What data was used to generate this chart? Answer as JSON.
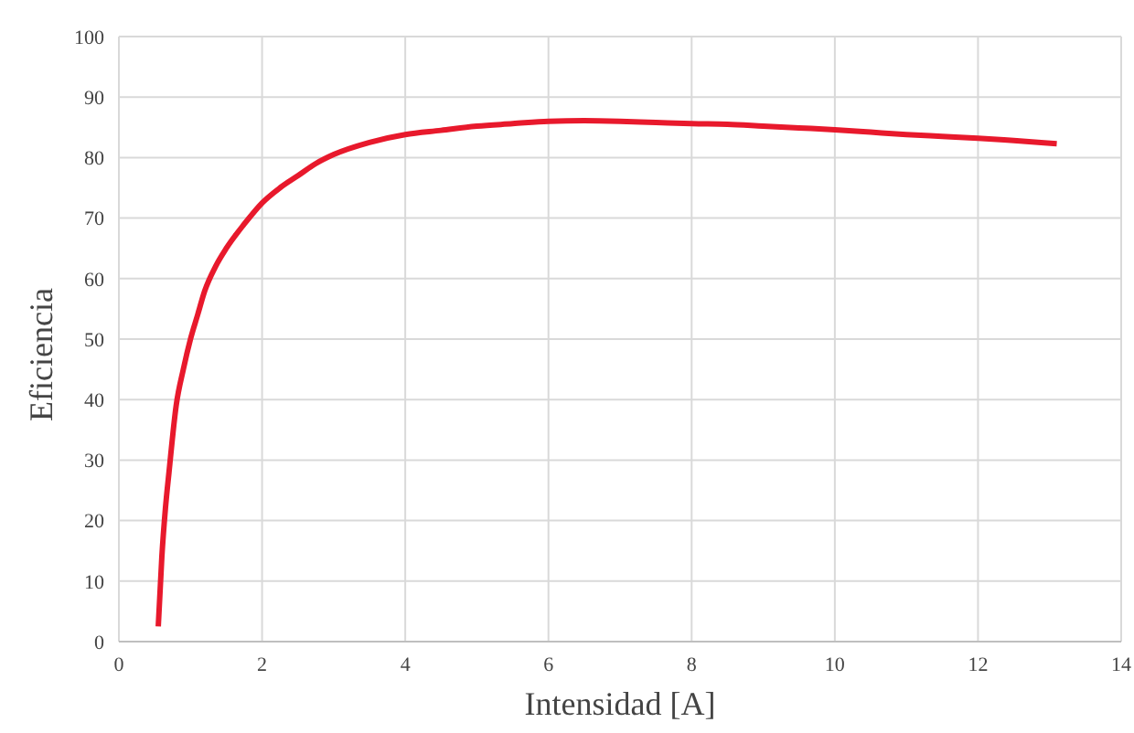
{
  "chart_data": {
    "type": "line",
    "xlabel": "Intensidad [A]",
    "ylabel": "Eficiencia",
    "x": [
      0.55,
      0.6,
      0.65,
      0.7,
      0.8,
      0.9,
      1.0,
      1.1,
      1.2,
      1.35,
      1.5,
      1.75,
      2.0,
      2.25,
      2.5,
      2.75,
      3.0,
      3.5,
      4.0,
      4.5,
      5.0,
      5.5,
      6.0,
      6.5,
      7.0,
      7.5,
      8.0,
      8.5,
      9.0,
      9.5,
      10.0,
      10.5,
      11.0,
      11.5,
      12.0,
      12.5,
      13.1
    ],
    "series": [
      {
        "color": "#e8192c",
        "values": [
          2.5,
          14,
          22,
          28,
          39,
          45,
          50,
          54,
          58,
          62,
          65,
          69,
          72.5,
          75,
          77,
          79,
          80.5,
          82.5,
          83.8,
          84.5,
          85.2,
          85.6,
          86,
          86.1,
          86,
          85.8,
          85.6,
          85.5,
          85.2,
          84.9,
          84.6,
          84.2,
          83.8,
          83.5,
          83.2,
          82.8,
          82.3
        ]
      }
    ],
    "xlim": [
      0,
      14
    ],
    "xticks": [
      0,
      2,
      4,
      6,
      8,
      10,
      12,
      14
    ],
    "ylim": [
      0,
      100
    ],
    "yticks": [
      0,
      10,
      20,
      30,
      40,
      50,
      60,
      70,
      80,
      90,
      100
    ],
    "grid": true,
    "legend": false,
    "marker": "none",
    "line_style": "solid"
  }
}
